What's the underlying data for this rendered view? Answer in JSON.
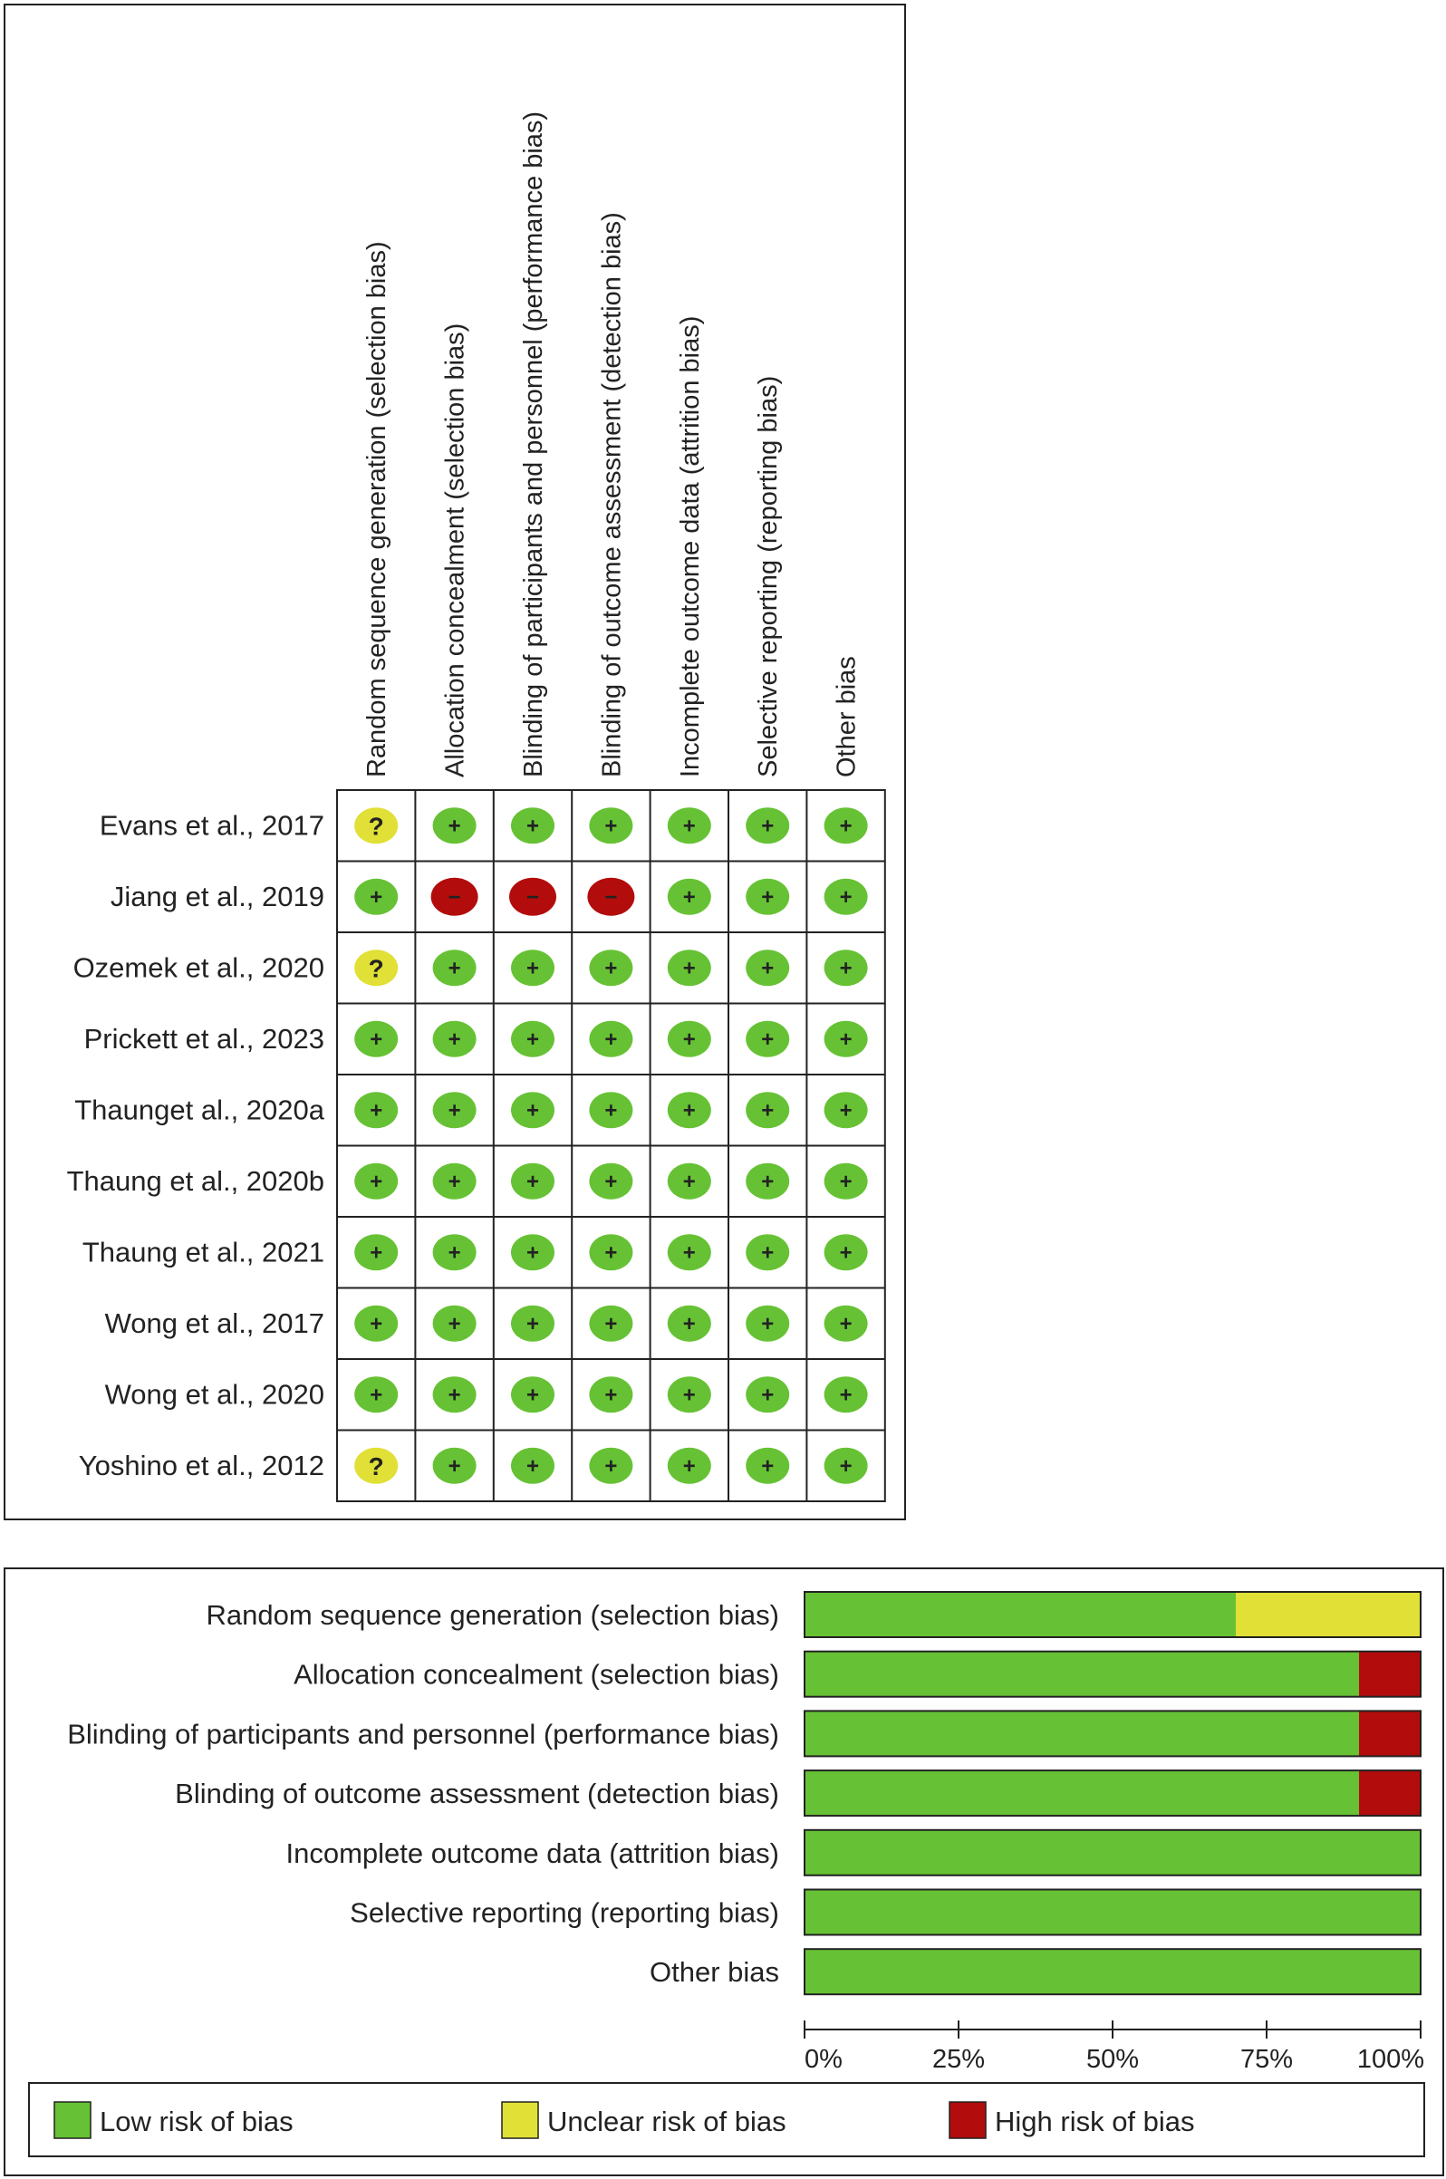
{
  "chart_data": [
    {
      "type": "table",
      "columns": [
        "Random sequence generation (selection bias)",
        "Allocation concealment (selection bias)",
        "Blinding of participants and personnel (performance bias)",
        "Blinding of outcome assessment (detection bias)",
        "Incomplete outcome data (attrition bias)",
        "Selective reporting (reporting bias)",
        "Other bias"
      ],
      "rows": [
        {
          "study": "Evans et al., 2017",
          "ratings": [
            "unclear",
            "low",
            "low",
            "low",
            "low",
            "low",
            "low"
          ]
        },
        {
          "study": "Jiang et al., 2019",
          "ratings": [
            "low",
            "high",
            "high",
            "high",
            "low",
            "low",
            "low"
          ]
        },
        {
          "study": "Ozemek et al., 2020",
          "ratings": [
            "unclear",
            "low",
            "low",
            "low",
            "low",
            "low",
            "low"
          ]
        },
        {
          "study": "Prickett et al., 2023",
          "ratings": [
            "low",
            "low",
            "low",
            "low",
            "low",
            "low",
            "low"
          ]
        },
        {
          "study": "Thaunget al., 2020a",
          "ratings": [
            "low",
            "low",
            "low",
            "low",
            "low",
            "low",
            "low"
          ]
        },
        {
          "study": "Thaung et al., 2020b",
          "ratings": [
            "low",
            "low",
            "low",
            "low",
            "low",
            "low",
            "low"
          ]
        },
        {
          "study": "Thaung et al., 2021",
          "ratings": [
            "low",
            "low",
            "low",
            "low",
            "low",
            "low",
            "low"
          ]
        },
        {
          "study": "Wong et al., 2017",
          "ratings": [
            "low",
            "low",
            "low",
            "low",
            "low",
            "low",
            "low"
          ]
        },
        {
          "study": "Wong et al., 2020",
          "ratings": [
            "low",
            "low",
            "low",
            "low",
            "low",
            "low",
            "low"
          ]
        },
        {
          "study": "Yoshino et al., 2012",
          "ratings": [
            "unclear",
            "low",
            "low",
            "low",
            "low",
            "low",
            "low"
          ]
        }
      ],
      "symbols": {
        "low": "+",
        "unclear": "?",
        "high": "−"
      }
    },
    {
      "type": "bar",
      "orientation": "horizontal",
      "stacked": true,
      "categories": [
        "Random sequence generation (selection bias)",
        "Allocation concealment (selection bias)",
        "Blinding of participants and personnel (performance bias)",
        "Blinding of outcome assessment (detection bias)",
        "Incomplete outcome data (attrition bias)",
        "Selective reporting (reporting bias)",
        "Other bias"
      ],
      "series": [
        {
          "name": "Low risk of bias",
          "key": "low",
          "values": [
            70,
            90,
            90,
            90,
            100,
            100,
            100
          ]
        },
        {
          "name": "Unclear risk of bias",
          "key": "unclear",
          "values": [
            30,
            0,
            0,
            0,
            0,
            0,
            0
          ]
        },
        {
          "name": "High risk of bias",
          "key": "high",
          "values": [
            0,
            10,
            10,
            10,
            0,
            0,
            0
          ]
        }
      ],
      "xlim": [
        0,
        100
      ],
      "xticks": [
        "0%",
        "25%",
        "50%",
        "75%",
        "100%"
      ],
      "legend_position": "bottom"
    }
  ],
  "colors": {
    "low": "#66c234",
    "unclear": "#e0e036",
    "high": "#b30c0c",
    "grid": "#222222"
  }
}
